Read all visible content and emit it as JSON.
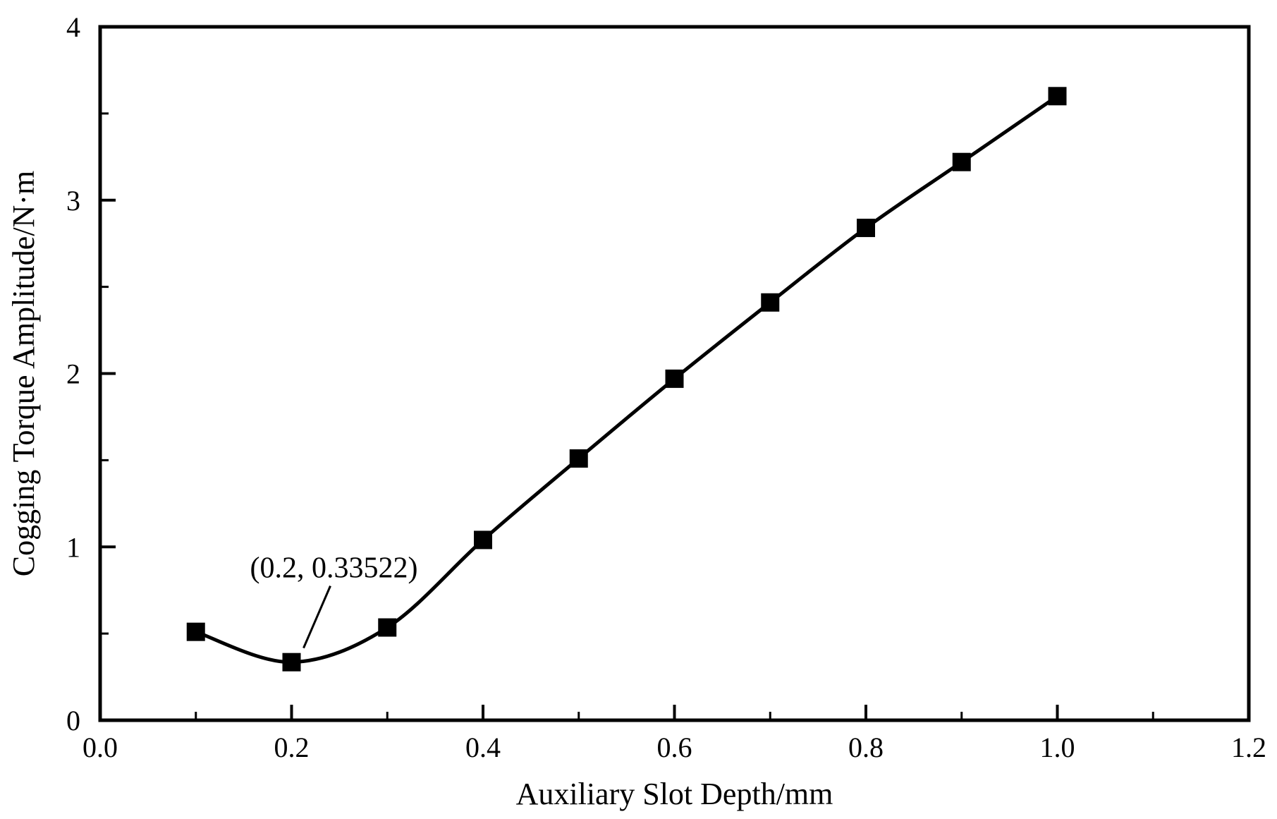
{
  "chart_data": {
    "type": "line",
    "title": "",
    "xlabel": "Auxiliary Slot Depth/mm",
    "ylabel": "Cogging Torque Amplitude/N·m",
    "xlim": [
      0.0,
      1.2
    ],
    "ylim": [
      0,
      4
    ],
    "x_ticks": [
      0.0,
      0.2,
      0.4,
      0.6,
      0.8,
      1.0,
      1.2
    ],
    "x_tick_labels": [
      "0.0",
      "0.2",
      "0.4",
      "0.6",
      "0.8",
      "1.0",
      "1.2"
    ],
    "y_ticks": [
      0,
      1,
      2,
      3,
      4
    ],
    "y_tick_labels": [
      "0",
      "1",
      "2",
      "3",
      "4"
    ],
    "grid": false,
    "line_color": "#000000",
    "marker": "square",
    "series": [
      {
        "x": [
          0.1,
          0.2,
          0.3,
          0.4,
          0.5,
          0.6,
          0.7,
          0.8,
          0.9,
          1.0
        ],
        "values": [
          0.51,
          0.335,
          0.535,
          1.04,
          1.51,
          1.97,
          2.41,
          2.84,
          3.22,
          3.6
        ]
      }
    ],
    "annotation": {
      "text": "(0.2, 0.33522)",
      "x": 0.2,
      "y": 0.33522
    }
  }
}
